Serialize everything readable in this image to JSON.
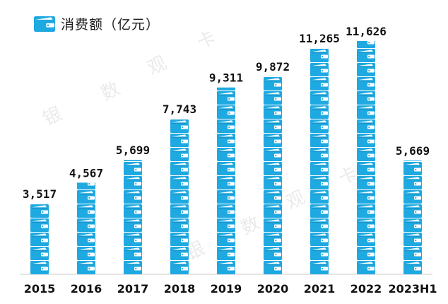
{
  "legend": {
    "label": "消费额（亿元）",
    "icon": "wallet-icon"
  },
  "watermark": "银数观卡",
  "colors": {
    "wallet": "#1fa9e1",
    "wallet_dark": "#0d6e9c",
    "axis": "#c8c8c8",
    "text": "#111111"
  },
  "chart_data": {
    "type": "bar",
    "categories": [
      "2015",
      "2016",
      "2017",
      "2018",
      "2019",
      "2020",
      "2021",
      "2022",
      "2023H1"
    ],
    "series": [
      {
        "name": "消费额（亿元）",
        "values": [
          3517,
          4567,
          5699,
          7743,
          9311,
          9872,
          11265,
          11626,
          5669
        ]
      }
    ],
    "value_labels": [
      "3,517",
      "4,567",
      "5,699",
      "7,743",
      "9,311",
      "9,872",
      "11,265",
      "11,626",
      "5,669"
    ],
    "ylim": [
      0,
      11626
    ]
  }
}
